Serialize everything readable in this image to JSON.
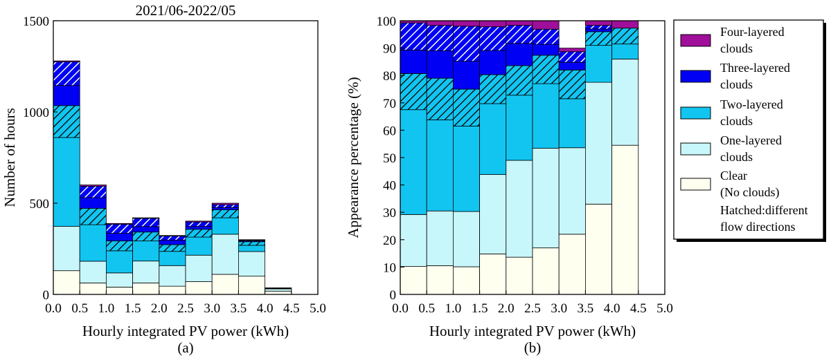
{
  "chart_data": [
    {
      "type": "bar",
      "stacked": true,
      "panel_label": "(a)",
      "title": "2021/06-2022/05",
      "xlabel": "Hourly integrated PV power (kWh)",
      "ylabel": "Number of hours",
      "xlim": [
        0,
        5
      ],
      "ylim": [
        0,
        1500
      ],
      "xticks": [
        "0.0",
        "0.5",
        "1.0",
        "1.5",
        "2.0",
        "2.5",
        "3.0",
        "3.5",
        "4.0",
        "4.5",
        "5.0"
      ],
      "yticks": [
        "0",
        "500",
        "1000",
        "1500"
      ],
      "bins": [
        [
          0,
          0.5
        ],
        [
          0.5,
          1.0
        ],
        [
          1.0,
          1.5
        ],
        [
          1.5,
          2.0
        ],
        [
          2.0,
          2.5
        ],
        [
          2.5,
          3.0
        ],
        [
          3.0,
          3.5
        ],
        [
          3.5,
          4.0
        ],
        [
          4.0,
          4.5
        ]
      ],
      "series": [
        {
          "name": "Clear (No clouds)",
          "values": [
            130,
            63,
            40,
            63,
            45,
            70,
            110,
            100,
            18
          ]
        },
        {
          "name": "One-layered clouds",
          "values": [
            243,
            119,
            78,
            120,
            113,
            145,
            220,
            135,
            12
          ]
        },
        {
          "name": "Two-layered clouds",
          "values": [
            487,
            200,
            121,
            110,
            78,
            99,
            90,
            34,
            3
          ]
        },
        {
          "name": "Two-layered clouds (hatched)",
          "values": [
            175,
            90,
            54,
            49,
            37,
            43,
            44,
            20,
            2
          ]
        },
        {
          "name": "Three-layered clouds",
          "values": [
            110,
            58,
            42,
            30,
            25,
            16,
            12,
            4,
            0
          ]
        },
        {
          "name": "Three-layered clouds (hatched)",
          "values": [
            130,
            63,
            50,
            45,
            22,
            24,
            16,
            4,
            0
          ]
        },
        {
          "name": "Four-layered clouds",
          "values": [
            5,
            7,
            4,
            3,
            3,
            5,
            8,
            3,
            1
          ]
        }
      ]
    },
    {
      "type": "bar",
      "stacked": true,
      "panel_label": "(b)",
      "title": "",
      "xlabel": "Hourly integrated PV power (kWh)",
      "ylabel": "Appearance percentage (%)",
      "xlim": [
        0,
        5
      ],
      "ylim": [
        0,
        100
      ],
      "xticks": [
        "0.0",
        "0.5",
        "1.0",
        "1.5",
        "2.0",
        "2.5",
        "3.0",
        "3.5",
        "4.0",
        "4.5",
        "5.0"
      ],
      "yticks": [
        "0",
        "10",
        "20",
        "30",
        "40",
        "50",
        "60",
        "70",
        "80",
        "90",
        "100"
      ],
      "bins": [
        [
          0,
          0.5
        ],
        [
          0.5,
          1.0
        ],
        [
          1.0,
          1.5
        ],
        [
          1.5,
          2.0
        ],
        [
          2.0,
          2.5
        ],
        [
          2.5,
          3.0
        ],
        [
          3.0,
          3.5
        ],
        [
          3.5,
          4.0
        ],
        [
          4.0,
          4.5
        ]
      ],
      "series": [
        {
          "name": "Clear (No clouds)",
          "values": [
            10.2,
            10.5,
            10.1,
            14.8,
            13.6,
            17.0,
            22.0,
            33.0,
            54.5
          ]
        },
        {
          "name": "One-layered clouds",
          "values": [
            19.0,
            20.0,
            20.2,
            29.0,
            35.4,
            36.4,
            31.6,
            44.5,
            31.5
          ]
        },
        {
          "name": "Two-layered clouds",
          "values": [
            38.3,
            33.3,
            31.2,
            25.9,
            23.8,
            23.6,
            17.9,
            13.5,
            5.5
          ]
        },
        {
          "name": "Two-layered clouds (hatched)",
          "values": [
            13.2,
            15.2,
            13.5,
            10.6,
            10.8,
            10.4,
            10.5,
            5.0,
            5.8
          ]
        },
        {
          "name": "Three-layered clouds",
          "values": [
            8.6,
            10.0,
            10.2,
            8.8,
            8.1,
            4.0,
            2.8,
            1.0,
            0.0
          ]
        },
        {
          "name": "Three-layered clouds (hatched)",
          "values": [
            9.9,
            9.3,
            12.8,
            8.7,
            6.6,
            5.5,
            3.9,
            1.3,
            0.0
          ]
        },
        {
          "name": "Four-layered clouds",
          "values": [
            0.8,
            1.7,
            2.0,
            2.2,
            1.7,
            3.1,
            1.3,
            1.7,
            2.7
          ]
        }
      ]
    }
  ],
  "legend": {
    "entries": [
      {
        "line1": "Four-layered",
        "line2": "clouds"
      },
      {
        "line1": "Three-layered",
        "line2": "clouds"
      },
      {
        "line1": "Two-layered",
        "line2": "clouds"
      },
      {
        "line1": "One-layered",
        "line2": "clouds"
      },
      {
        "line1": "Clear",
        "line2": "(No clouds)"
      }
    ],
    "note_line1": "Hatched:different",
    "note_line2": "flow directions"
  },
  "colors": {
    "clear": "#fffff0",
    "one_layer": "#c8f7fb",
    "two_layer": "#12c5f1",
    "three_layer": "#0000f5",
    "four_layer": "#9f0f9a",
    "axis": "#000000"
  },
  "icons": [
    "hatch-pattern-two-layer",
    "hatch-pattern-three-layer"
  ]
}
